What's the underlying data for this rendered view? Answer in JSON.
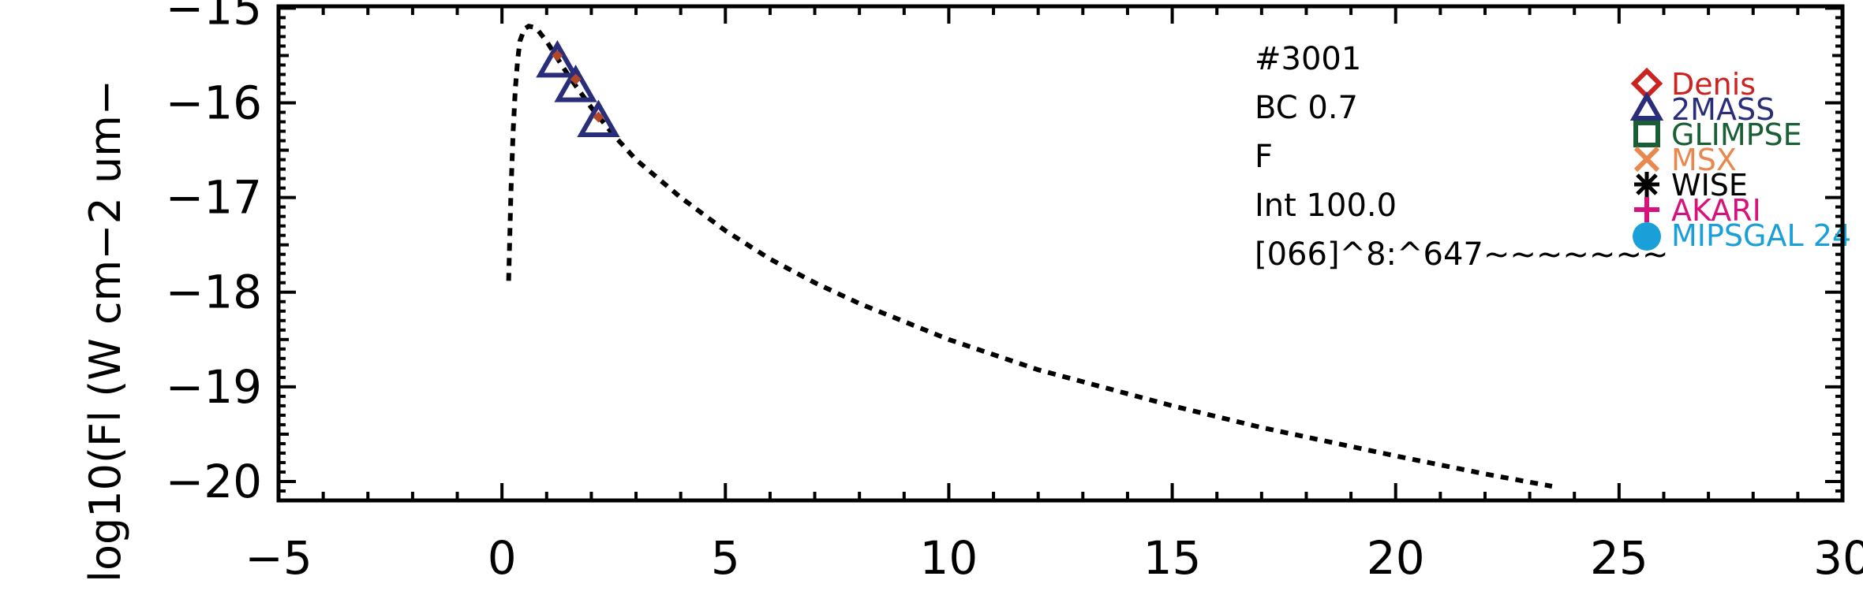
{
  "chart_data": {
    "type": "line",
    "title": "",
    "xlabel": "",
    "ylabel": "log10(Fl (W cm−2 um−",
    "xlim": [
      -5,
      30
    ],
    "ylim": [
      -20.2,
      -14.98
    ],
    "xticks": [
      {
        "value": -5,
        "label": "−5"
      },
      {
        "value": 0,
        "label": "0"
      },
      {
        "value": 5,
        "label": "5"
      },
      {
        "value": 10,
        "label": "10"
      },
      {
        "value": 15,
        "label": "15"
      },
      {
        "value": 20,
        "label": "20"
      },
      {
        "value": 25,
        "label": "25"
      },
      {
        "value": 30,
        "label": "30"
      }
    ],
    "yticks": [
      {
        "value": -15,
        "label": "−15"
      },
      {
        "value": -16,
        "label": "−16"
      },
      {
        "value": -17,
        "label": "−17"
      },
      {
        "value": -18,
        "label": "−18"
      },
      {
        "value": -19,
        "label": "−19"
      },
      {
        "value": -20,
        "label": "−20"
      }
    ],
    "grid": false,
    "legend_position": "top-right",
    "series": [
      {
        "type": "line",
        "style": "dotted",
        "color": "#000000",
        "x": [
          0.15,
          0.2,
          0.25,
          0.3,
          0.35,
          0.4,
          0.5,
          0.6,
          0.7,
          0.8,
          1.0,
          1.2,
          1.5,
          2.0,
          2.5,
          3.0,
          4.0,
          5.0,
          6.0,
          7.0,
          8.0,
          10.0,
          12.0,
          15.0,
          17.0,
          20.0,
          22.0,
          23.5
        ],
        "y": [
          -17.88,
          -16.95,
          -16.3,
          -15.85,
          -15.55,
          -15.35,
          -15.22,
          -15.19,
          -15.2,
          -15.23,
          -15.35,
          -15.5,
          -15.72,
          -16.05,
          -16.34,
          -16.6,
          -17.0,
          -17.35,
          -17.65,
          -17.9,
          -18.12,
          -18.5,
          -18.82,
          -19.2,
          -19.43,
          -19.73,
          -19.92,
          -20.05
        ]
      }
    ],
    "points": [
      {
        "survey": "2MASS",
        "x": 1.24,
        "y": -15.57
      },
      {
        "survey": "2MASS",
        "x": 1.65,
        "y": -15.83
      },
      {
        "survey": "2MASS",
        "x": 2.16,
        "y": -16.2
      }
    ],
    "point_markers": [
      {
        "x": 1.24,
        "y": -15.5
      },
      {
        "x": 1.65,
        "y": -15.75
      },
      {
        "x": 2.16,
        "y": -16.15
      }
    ],
    "annotations": [
      "#3001",
      "BC 0.7",
      "F",
      "Int 100.0",
      "[066]^8:^647~~~~~~~"
    ],
    "legend": [
      {
        "label": "Denis",
        "marker": "diamond",
        "color": "#cc2222"
      },
      {
        "label": "2MASS",
        "marker": "triangle",
        "color": "#2a2e7a"
      },
      {
        "label": "GLIMPSE",
        "marker": "square",
        "color": "#1a5e35"
      },
      {
        "label": "MSX",
        "marker": "x",
        "color": "#e8874e"
      },
      {
        "label": "WISE",
        "marker": "asterisk",
        "color": "#000000"
      },
      {
        "label": "AKARI",
        "marker": "plus",
        "color": "#d6137a"
      },
      {
        "label": "MIPSGAL 24",
        "marker": "circle",
        "color": "#1a9fd8"
      }
    ]
  }
}
